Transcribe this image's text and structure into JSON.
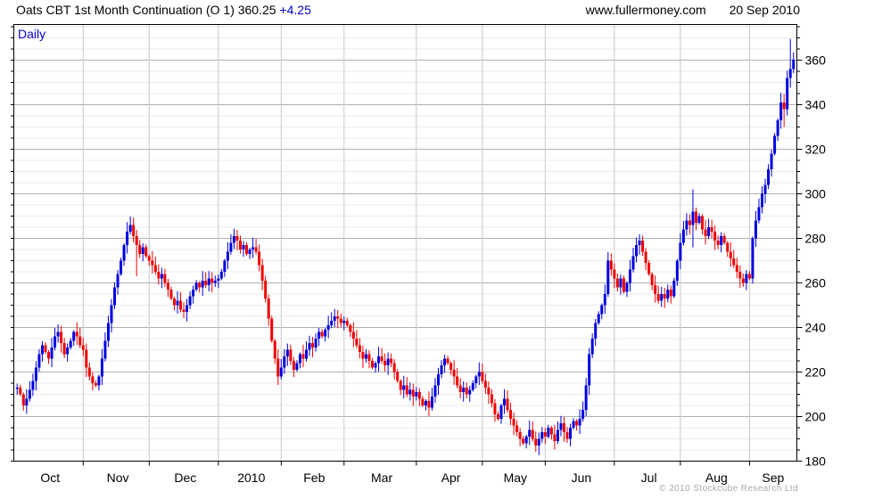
{
  "header": {
    "title": "Oats CBT 1st Month Continuation (O 1) 360.25",
    "change": "+4.25",
    "site": "www.fullermoney.com",
    "date": "20 Sep 2010"
  },
  "chart_label": "Daily",
  "footer": {
    "copyright": "© 2010 Stockcube Research Ltd"
  },
  "chart_data": {
    "type": "ohlc-candlestick",
    "instrument": "Oats CBT 1st Month Continuation (O 1)",
    "period": "Daily",
    "last_price": 360.25,
    "change": 4.25,
    "y_axis": {
      "min": 180,
      "max": 376,
      "major_step": 20,
      "minor_step": 5,
      "tick_labels": [
        180,
        200,
        220,
        240,
        260,
        280,
        300,
        320,
        340,
        360
      ]
    },
    "x_axis": {
      "months": [
        {
          "label": "Oct",
          "days": 22
        },
        {
          "label": "Nov",
          "days": 21
        },
        {
          "label": "Dec",
          "days": 22
        },
        {
          "label": "2010",
          "days": 20
        },
        {
          "label": "Feb",
          "days": 20
        },
        {
          "label": "Mar",
          "days": 23
        },
        {
          "label": "Apr",
          "days": 21
        },
        {
          "label": "May",
          "days": 20
        },
        {
          "label": "Jun",
          "days": 22
        },
        {
          "label": "Jul",
          "days": 21
        },
        {
          "label": "Aug",
          "days": 22
        },
        {
          "label": "Sep",
          "days": 14
        }
      ]
    },
    "colors": {
      "up": "#0000dd",
      "down": "#ee0000",
      "grid_minor": "#ebebeb",
      "grid_major": "#b0b0b0",
      "grid_month": "#c9c9c9",
      "border": "#000000",
      "label_blue": "#0000cc"
    },
    "closes": [
      213,
      210,
      205,
      208,
      212,
      216,
      222,
      228,
      232,
      229,
      226,
      231,
      236,
      238,
      233,
      228,
      231,
      234,
      238,
      236,
      232,
      230,
      222,
      218,
      215,
      214,
      218,
      226,
      234,
      242,
      250,
      258,
      264,
      270,
      277,
      283,
      286,
      281,
      277,
      273,
      276,
      272,
      270,
      268,
      265,
      262,
      264,
      260,
      257,
      253,
      250,
      252,
      248,
      247,
      250,
      254,
      257,
      260,
      258,
      261,
      259,
      262,
      260,
      261,
      262,
      265,
      270,
      274,
      278,
      281,
      279,
      275,
      277,
      273,
      275,
      276,
      274,
      268,
      261,
      253,
      244,
      234,
      226,
      218,
      222,
      227,
      230,
      225,
      221,
      224,
      228,
      226,
      230,
      233,
      231,
      235,
      238,
      236,
      239,
      241,
      243,
      245,
      244,
      242,
      243,
      241,
      238,
      235,
      232,
      229,
      226,
      228,
      225,
      222,
      224,
      227,
      225,
      223,
      226,
      224,
      220,
      216,
      212,
      214,
      210,
      212,
      209,
      211,
      208,
      205,
      207,
      204,
      209,
      214,
      219,
      223,
      226,
      224,
      221,
      218,
      214,
      211,
      213,
      210,
      212,
      215,
      218,
      220,
      216,
      213,
      210,
      206,
      201,
      199,
      205,
      208,
      203,
      199,
      196,
      193,
      190,
      188,
      191,
      194,
      190,
      187,
      190,
      193,
      191,
      195,
      192,
      189,
      194,
      197,
      193,
      190,
      195,
      198,
      196,
      199,
      203,
      214,
      228,
      235,
      242,
      246,
      250,
      255,
      270,
      266,
      262,
      258,
      262,
      256,
      260,
      266,
      272,
      277,
      279,
      274,
      269,
      264,
      259,
      255,
      252,
      255,
      253,
      257,
      254,
      261,
      270,
      278,
      284,
      288,
      286,
      292,
      287,
      290,
      284,
      281,
      285,
      283,
      279,
      277,
      281,
      278,
      274,
      271,
      268,
      265,
      262,
      260,
      264,
      262,
      280,
      288,
      294,
      300,
      304,
      311,
      318,
      326,
      333,
      341,
      338,
      352,
      356,
      360.25
    ],
    "wick_overrides": [
      {
        "i": 38,
        "lo": 263
      },
      {
        "i": 215,
        "hi": 302,
        "lo": 276
      },
      {
        "i": 244,
        "lo": 330
      },
      {
        "i": 246,
        "hi": 369.5
      },
      {
        "i": 247,
        "hi": 363.5
      }
    ]
  }
}
